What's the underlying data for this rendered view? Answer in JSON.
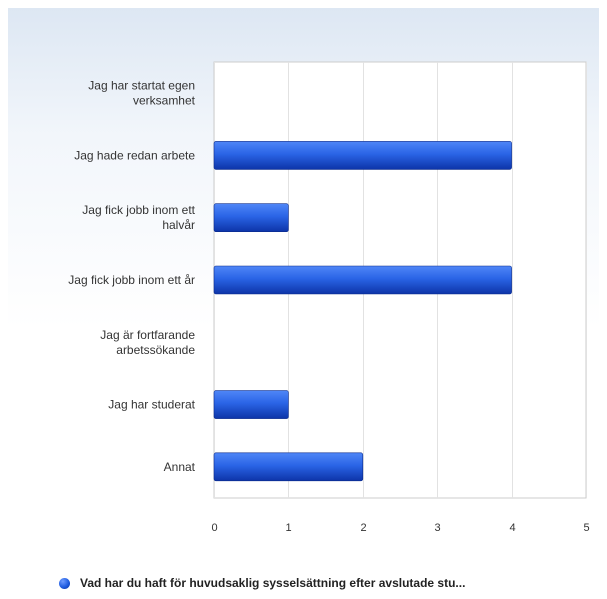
{
  "chart_data": {
    "type": "bar",
    "orientation": "horizontal",
    "categories": [
      "Jag har startat egen verksamhet",
      "Jag hade redan arbete",
      "Jag fick jobb inom ett halvår",
      "Jag fick jobb inom ett år",
      "Jag är fortfarande arbetssökande",
      "Jag har studerat",
      "Annat"
    ],
    "category_lines": [
      [
        "Jag har startat egen",
        "verksamhet"
      ],
      [
        "Jag hade redan arbete"
      ],
      [
        "Jag fick jobb inom ett",
        "halvår"
      ],
      [
        "Jag fick jobb inom ett år"
      ],
      [
        "Jag är fortfarande",
        "arbetssökande"
      ],
      [
        "Jag har studerat"
      ],
      [
        "Annat"
      ]
    ],
    "series": [
      {
        "name": "Vad har du haft för huvudsaklig sysselsättning efter avslutade stu...",
        "values": [
          0,
          4,
          1,
          4,
          0,
          1,
          2
        ],
        "color": "#1f5ce0"
      }
    ],
    "xlim": [
      0,
      5
    ],
    "xticks": [
      "0",
      "1",
      "2",
      "3",
      "4",
      "5"
    ],
    "grid": true,
    "legend_position": "bottom"
  },
  "colors": {
    "bar_light": "#4f86f7",
    "bar_dark": "#0d34a8",
    "grid": "#e2e2e2",
    "axis": "#cccccc"
  }
}
